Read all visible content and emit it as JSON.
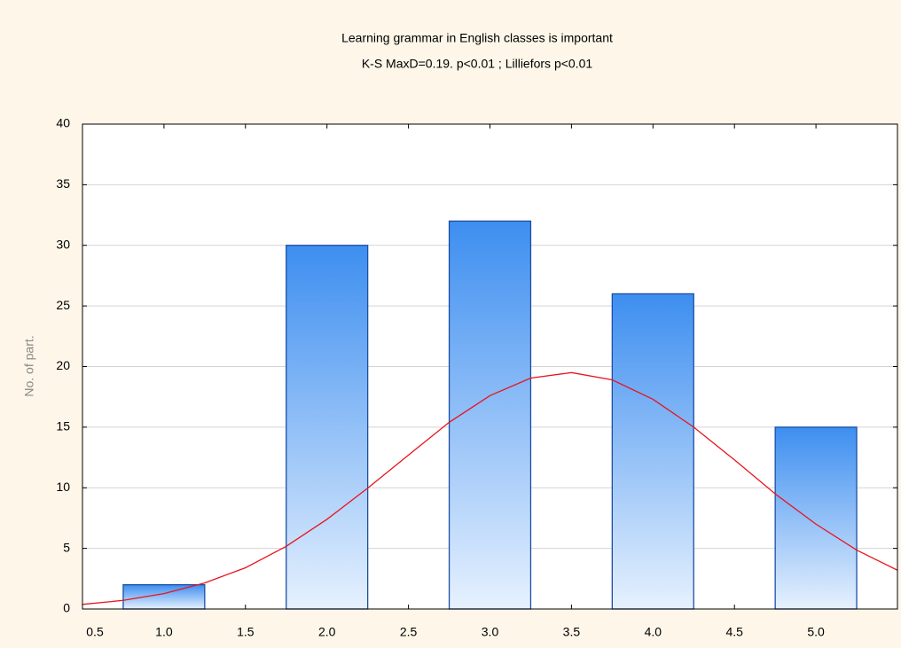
{
  "chart_data": {
    "type": "bar",
    "title": "Learning grammar in English classes is important",
    "subtitle": "K-S MaxD=0.19. p<0.01 ; Lilliefors p<0.01",
    "ylabel": "No. of part.",
    "x": [
      1,
      2,
      3,
      4,
      5
    ],
    "values": [
      2,
      30,
      32,
      26,
      15
    ],
    "color": "#3d8ef0",
    "fit": {
      "type": "line",
      "color": "#e8141c",
      "x": [
        0.5,
        0.75,
        1.0,
        1.25,
        1.5,
        1.75,
        2.0,
        2.25,
        2.5,
        2.75,
        3.0,
        3.25,
        3.5,
        3.75,
        4.0,
        4.25,
        4.5,
        4.75,
        5.0,
        5.25,
        5.5
      ],
      "values": [
        0.38,
        0.71,
        1.27,
        2.15,
        3.4,
        5.17,
        7.4,
        9.97,
        12.7,
        15.4,
        17.6,
        19.05,
        19.5,
        18.9,
        17.3,
        15.0,
        12.3,
        9.5,
        7.0,
        4.86,
        3.2
      ]
    },
    "xlim": [
      0.5,
      5.5
    ],
    "xticks": [
      0.5,
      {
        "value": 1,
        "label": "1.0"
      },
      1.5,
      {
        "value": 2,
        "label": "2.0"
      },
      2.5,
      {
        "value": 3,
        "label": "3.0"
      },
      3.5,
      {
        "value": 4,
        "label": "4.0"
      },
      4.5,
      {
        "value": 5,
        "label": "5.0"
      }
    ],
    "ylim": [
      0,
      40
    ],
    "yticks": [
      0,
      5,
      10,
      15,
      20,
      25,
      30,
      35,
      40
    ],
    "grid": true
  }
}
